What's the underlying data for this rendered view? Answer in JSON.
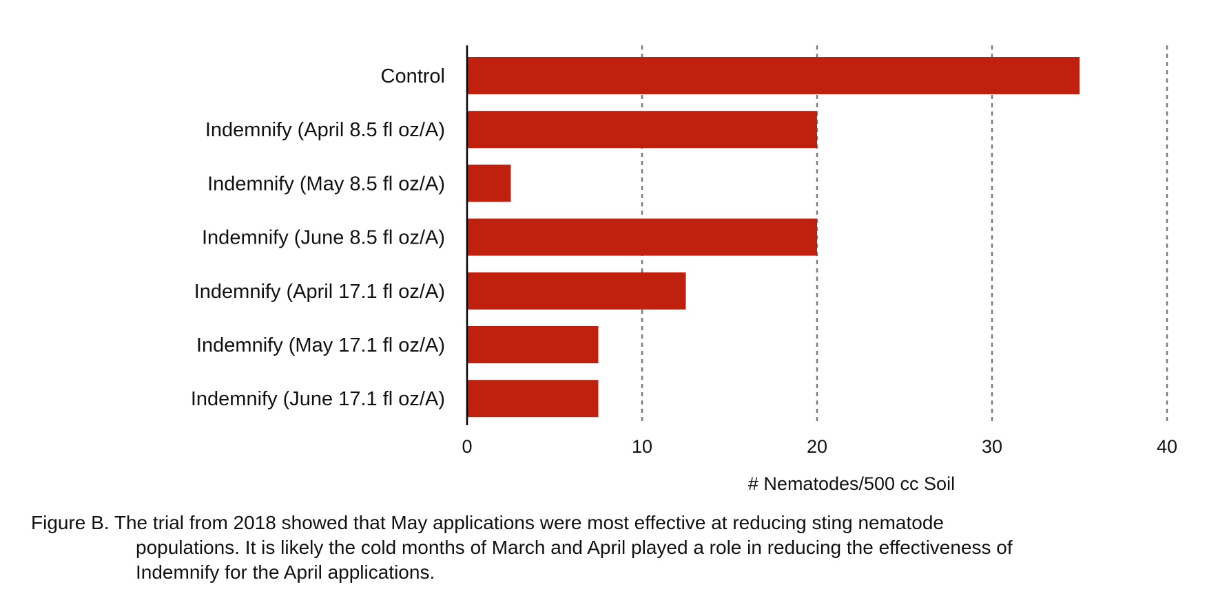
{
  "chart_data": {
    "type": "bar",
    "orientation": "horizontal",
    "categories": [
      "Control",
      "Indemnify (April 8.5 fl oz/A)",
      "Indemnify (May 8.5 fl oz/A)",
      "Indemnify (June 8.5 fl oz/A)",
      "Indemnify (April 17.1 fl oz/A)",
      "Indemnify (May 17.1 fl oz/A)",
      "Indemnify (June 17.1 fl oz/A)"
    ],
    "values": [
      35,
      20,
      2.5,
      20,
      12.5,
      7.5,
      7.5
    ],
    "title": "",
    "xlabel": "# Nematodes/500 cc Soil",
    "ylabel": "",
    "xlim": [
      0,
      40
    ],
    "xticks": [
      "0",
      "10",
      "20",
      "30",
      "40"
    ],
    "grid": "vertical dashed",
    "bar_color": "#c0210f"
  },
  "caption": {
    "lines": [
      "Figure B.  The trial from 2018 showed that May applications were most effective at reducing sting nematode",
      "populations.  It is likely the cold months of March and April played a role in reducing the effectiveness of",
      "Indemnify for the April applications."
    ]
  }
}
